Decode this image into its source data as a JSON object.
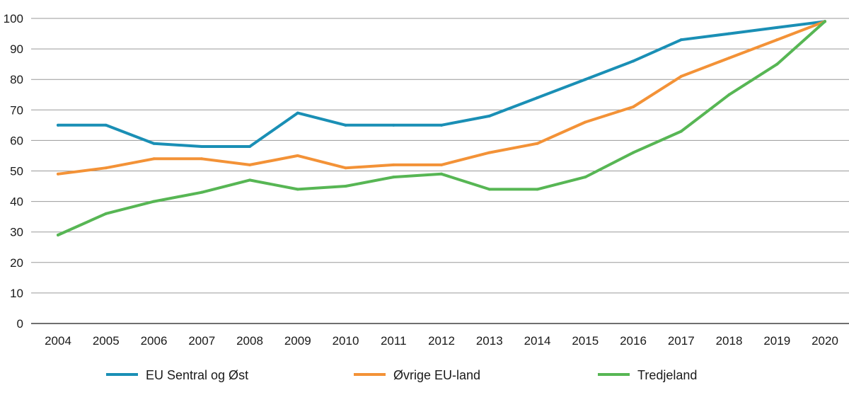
{
  "chart_data": {
    "type": "line",
    "title": "",
    "xlabel": "",
    "ylabel": "",
    "ylim": [
      0,
      100
    ],
    "yticks": [
      "0",
      "10",
      "20",
      "30",
      "40",
      "50",
      "60",
      "70",
      "80",
      "90",
      "100"
    ],
    "categories": [
      "2004",
      "2005",
      "2006",
      "2007",
      "2008",
      "2009",
      "2010",
      "2011",
      "2012",
      "2013",
      "2014",
      "2015",
      "2016",
      "2017",
      "2018",
      "2019",
      "2020"
    ],
    "grid": true,
    "legend_position": "bottom",
    "series": [
      {
        "name": "EU Sentral og Øst",
        "color": "#1a8fb5",
        "values": [
          65,
          65,
          59,
          58,
          58,
          69,
          65,
          65,
          65,
          68,
          74,
          80,
          86,
          93,
          95,
          97,
          99
        ]
      },
      {
        "name": "Øvrige EU-land",
        "color": "#f39237",
        "values": [
          49,
          51,
          54,
          54,
          52,
          55,
          51,
          52,
          52,
          56,
          59,
          66,
          71,
          81,
          87,
          93,
          99
        ]
      },
      {
        "name": "Tredjeland",
        "color": "#57b654",
        "values": [
          29,
          36,
          40,
          43,
          47,
          44,
          45,
          48,
          49,
          44,
          44,
          48,
          56,
          63,
          75,
          85,
          99
        ]
      }
    ]
  }
}
